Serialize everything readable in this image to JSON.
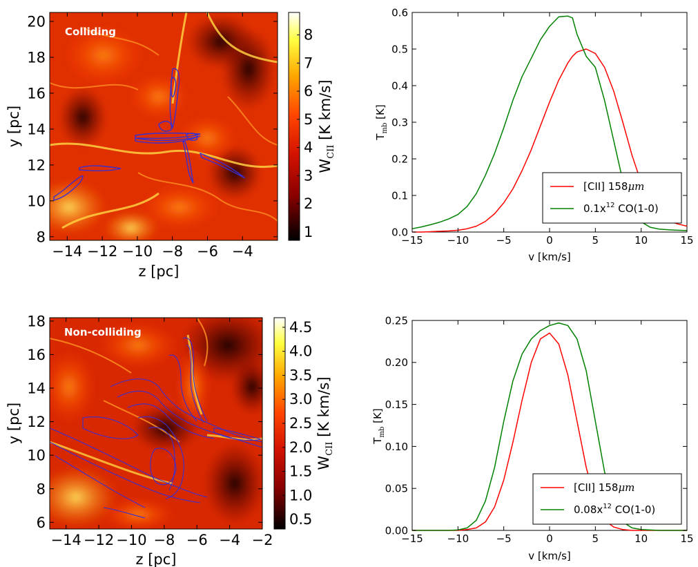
{
  "chart_data": [
    {
      "type": "heatmap",
      "panel_label": "Colliding",
      "xlabel": "z [pc]",
      "ylabel": "y [pc]",
      "xlim": [
        -15,
        -2
      ],
      "ylim": [
        7.8,
        20.5
      ],
      "xticks": [
        -14,
        -12,
        -10,
        -8,
        -6,
        -4
      ],
      "yticks": [
        8,
        10,
        12,
        14,
        16,
        18,
        20
      ],
      "colorbar": {
        "label": "W",
        "label_sub": "CII",
        "label_unit": "[K km/s]",
        "range": [
          0.7,
          8.8
        ],
        "ticks": [
          1,
          2,
          3,
          4,
          5,
          6,
          7,
          8
        ]
      },
      "colormap": [
        "#000000",
        "#8b0000",
        "#d41300",
        "#ff4500",
        "#ffa500",
        "#ffff40",
        "#ffffff"
      ],
      "contour_color": "#3a2fd0"
    },
    {
      "type": "line",
      "xlabel": "v [km/s]",
      "ylabel": "T",
      "ylabel_sub": "mb",
      "ylabel_unit": "[K]",
      "xlim": [
        -15,
        15
      ],
      "ylim": [
        0,
        0.6
      ],
      "xticks": [
        -15,
        -10,
        -5,
        0,
        5,
        10,
        15
      ],
      "yticks": [
        0.0,
        0.1,
        0.2,
        0.3,
        0.4,
        0.5,
        0.6
      ],
      "ytick_labels": [
        "0.0",
        "0.1",
        "0.2",
        "0.3",
        "0.4",
        "0.5",
        "0.6"
      ],
      "x": [
        -15,
        -14,
        -13,
        -12,
        -11,
        -10,
        -9,
        -8,
        -7,
        -6,
        -5,
        -4,
        -3,
        -2,
        -1,
        0,
        1,
        2,
        2.5,
        3,
        4,
        5,
        6,
        7,
        8,
        9,
        10,
        11,
        12,
        13,
        14,
        15
      ],
      "series": [
        {
          "name": "[CII] 158",
          "name_math": "μm",
          "color": "#ff0000",
          "values": [
            0.0,
            0.0,
            0.001,
            0.002,
            0.003,
            0.005,
            0.009,
            0.016,
            0.029,
            0.05,
            0.08,
            0.118,
            0.168,
            0.225,
            0.29,
            0.355,
            0.415,
            0.462,
            0.48,
            0.492,
            0.5,
            0.488,
            0.45,
            0.385,
            0.3,
            0.21,
            0.135,
            0.08,
            0.047,
            0.03,
            0.022,
            0.016
          ]
        },
        {
          "name": "0.1x",
          "name_sup": "12",
          "name_tail": "CO(1-0)",
          "color": "#008000",
          "values": [
            0.009,
            0.014,
            0.02,
            0.027,
            0.036,
            0.048,
            0.07,
            0.105,
            0.155,
            0.215,
            0.285,
            0.36,
            0.425,
            0.475,
            0.525,
            0.562,
            0.588,
            0.59,
            0.585,
            0.54,
            0.48,
            0.45,
            0.36,
            0.25,
            0.14,
            0.065,
            0.028,
            0.013,
            0.008,
            0.006,
            0.005,
            0.004
          ]
        }
      ],
      "legend": "lower-right"
    },
    {
      "type": "heatmap",
      "panel_label": "Non-colliding",
      "xlabel": "z [pc]",
      "ylabel": "y [pc]",
      "xlim": [
        -15,
        -2
      ],
      "ylim": [
        5.6,
        18.2
      ],
      "xticks": [
        -14,
        -12,
        -10,
        -8,
        -6,
        -4,
        -2
      ],
      "yticks": [
        6,
        8,
        10,
        12,
        14,
        16,
        18
      ],
      "colorbar": {
        "label": "W",
        "label_sub": "CII",
        "label_unit": "[K km/s]",
        "range": [
          0.3,
          4.7
        ],
        "ticks": [
          0.5,
          1.0,
          1.5,
          2.0,
          2.5,
          3.0,
          3.5,
          4.0,
          4.5
        ],
        "tick_labels": [
          "0.5",
          "1.0",
          "1.5",
          "2.0",
          "2.5",
          "3.0",
          "3.5",
          "4.0",
          "4.5"
        ]
      },
      "colormap": [
        "#000000",
        "#8b0000",
        "#d41300",
        "#ff4500",
        "#ffa500",
        "#ffff40",
        "#ffffff"
      ],
      "contour_color": "#3a2fd0"
    },
    {
      "type": "line",
      "xlabel": "v [km/s]",
      "ylabel": "T",
      "ylabel_sub": "mb",
      "ylabel_unit": "[K]",
      "xlim": [
        -15,
        15
      ],
      "ylim": [
        0,
        0.25
      ],
      "xticks": [
        -15,
        -10,
        -5,
        0,
        5,
        10,
        15
      ],
      "yticks": [
        0.0,
        0.05,
        0.1,
        0.15,
        0.2,
        0.25
      ],
      "ytick_labels": [
        "0.00",
        "0.05",
        "0.10",
        "0.15",
        "0.20",
        "0.25"
      ],
      "x": [
        -15,
        -13,
        -11,
        -10,
        -9,
        -8,
        -7,
        -6,
        -5,
        -4,
        -3,
        -2,
        -1,
        0,
        1,
        2,
        3,
        4,
        5,
        6,
        7,
        8,
        9,
        10,
        12,
        15
      ],
      "series": [
        {
          "name": "[CII] 158",
          "name_math": "μm",
          "color": "#ff0000",
          "values": [
            0.0,
            0.0,
            0.0,
            0.0,
            0.001,
            0.003,
            0.01,
            0.028,
            0.06,
            0.105,
            0.155,
            0.2,
            0.228,
            0.235,
            0.222,
            0.185,
            0.13,
            0.075,
            0.035,
            0.012,
            0.004,
            0.001,
            0.0,
            0.0,
            0.0,
            0.0
          ]
        },
        {
          "name": "0.08x",
          "name_sup": "12",
          "name_tail": "CO(1-0)",
          "color": "#008000",
          "values": [
            0.0,
            0.0,
            0.0,
            0.0005,
            0.003,
            0.012,
            0.035,
            0.075,
            0.13,
            0.178,
            0.21,
            0.228,
            0.238,
            0.244,
            0.247,
            0.244,
            0.228,
            0.19,
            0.13,
            0.07,
            0.03,
            0.01,
            0.003,
            0.001,
            0.0,
            0.0
          ]
        }
      ],
      "legend": "lower-right"
    }
  ]
}
